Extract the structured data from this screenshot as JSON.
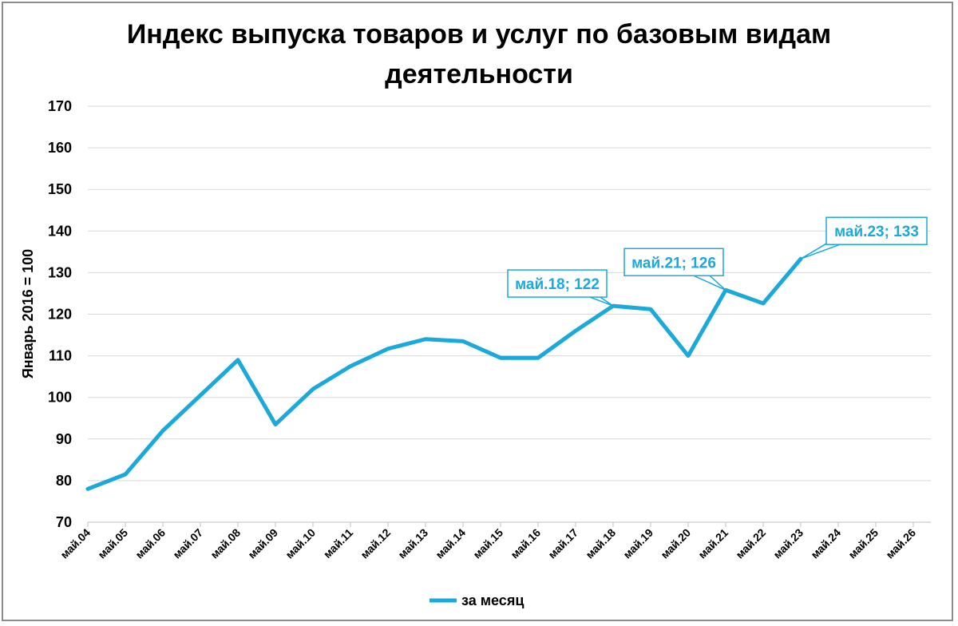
{
  "chart_data": {
    "type": "line",
    "title": "Индекс выпуска товаров и услуг по базовым видам деятельности",
    "title_lines": [
      "Индекс выпуска товаров и услуг по базовым видам",
      "деятельности"
    ],
    "ylabel": "Январь 2016 = 100",
    "xlabel": "",
    "ylim": [
      70,
      170
    ],
    "yticks": [
      70,
      80,
      90,
      100,
      110,
      120,
      130,
      140,
      150,
      160,
      170
    ],
    "categories": [
      "май.04",
      "май.05",
      "май.06",
      "май.07",
      "май.08",
      "май.09",
      "май.10",
      "май.11",
      "май.12",
      "май.13",
      "май.14",
      "май.15",
      "май.16",
      "май.17",
      "май.18",
      "май.19",
      "май.20",
      "май.21",
      "май.22",
      "май.23",
      "май.24",
      "май.25",
      "май.26"
    ],
    "series": [
      {
        "name": "за месяц",
        "color": "#1ba9dc",
        "values": [
          78,
          81.5,
          92,
          100.5,
          109,
          93.5,
          102,
          107.5,
          111.7,
          114,
          113.5,
          109.5,
          109.5,
          116,
          122,
          121.2,
          110,
          125.8,
          122.6,
          133.3,
          null,
          null,
          null
        ]
      }
    ],
    "annotations": [
      {
        "label": "май.18; 122",
        "category": "май.18",
        "value": 122
      },
      {
        "label": "май.21; 126",
        "category": "май.21",
        "value": 125.8
      },
      {
        "label": "май.23; 133",
        "category": "май.23",
        "value": 133.3
      }
    ],
    "grid": true,
    "legend": "bottom"
  }
}
